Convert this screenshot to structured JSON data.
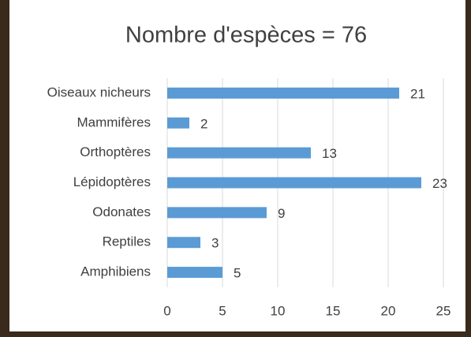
{
  "chart_data": {
    "type": "bar",
    "orientation": "horizontal",
    "title": "Nombre d'espèces = 76",
    "categories": [
      "Oiseaux nicheurs",
      "Mammifères",
      "Orthoptères",
      "Lépidoptères",
      "Odonates",
      "Reptiles",
      "Amphibiens"
    ],
    "values": [
      21,
      2,
      13,
      23,
      9,
      3,
      5
    ],
    "color": "#5b9bd5",
    "xlim": [
      0,
      25
    ],
    "xticks": [
      0,
      5,
      10,
      15,
      20,
      25
    ],
    "grid": true
  }
}
